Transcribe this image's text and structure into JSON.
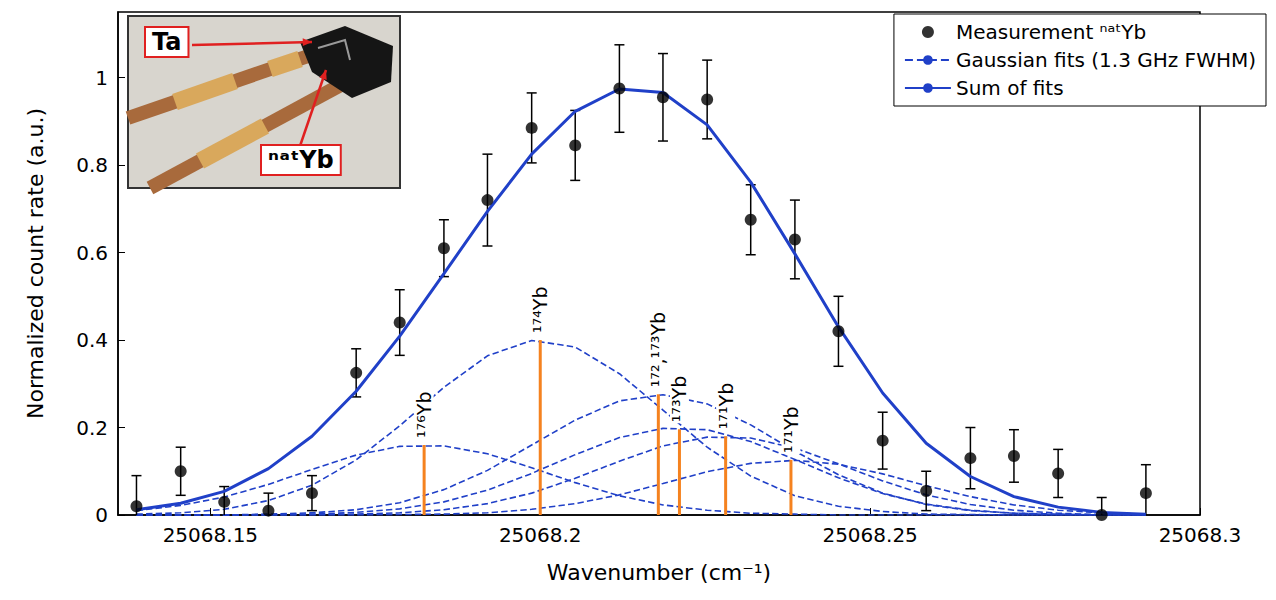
{
  "chart_data": {
    "type": "scatter",
    "x_label": "Wavenumber (cm⁻¹)",
    "y_label": "Normalized count rate (a.u.)",
    "xlim": [
      25068.136,
      25068.3
    ],
    "xticks": [
      25068.15,
      25068.2,
      25068.25,
      25068.3
    ],
    "ylim": [
      0,
      1.15
    ],
    "yticks": [
      0,
      0.2,
      0.4,
      0.6,
      0.8,
      1
    ],
    "grid": false,
    "legend": "upper right",
    "x": [
      25068.1388,
      25068.1455,
      25068.1521,
      25068.1588,
      25068.1654,
      25068.1721,
      25068.1787,
      25068.1854,
      25068.192,
      25068.1987,
      25068.2053,
      25068.212,
      25068.2186,
      25068.2253,
      25068.2319,
      25068.2386,
      25068.2452,
      25068.2519,
      25068.2585,
      25068.2652,
      25068.2718,
      25068.2785,
      25068.2851,
      25068.2918
    ],
    "series": [
      {
        "name": "Measurement ⁿᵃᵗYb",
        "type": "scatter",
        "color": "#000000",
        "marker": "circle",
        "values": [
          0.02,
          0.1,
          0.03,
          0.01,
          0.05,
          0.325,
          0.44,
          0.61,
          0.72,
          0.885,
          0.845,
          0.975,
          0.955,
          0.95,
          0.675,
          0.63,
          0.42,
          0.17,
          0.055,
          0.13,
          0.135,
          0.095,
          0.0,
          0.05
        ],
        "errors": [
          0.07,
          0.055,
          0.035,
          0.04,
          0.04,
          0.055,
          0.075,
          0.065,
          0.105,
          0.08,
          0.08,
          0.1,
          0.1,
          0.09,
          0.08,
          0.09,
          0.08,
          0.065,
          0.045,
          0.07,
          0.06,
          0.055,
          0.04,
          0.065
        ]
      },
      {
        "name": "Gaussian fits (1.3 GHz FWHM)",
        "type": "line",
        "color": "#2040c8",
        "line_style": "dashed",
        "values": [
          [
            0.01,
            0.022,
            0.041,
            0.07,
            0.104,
            0.137,
            0.157,
            0.158,
            0.14,
            0.108,
            0.074,
            0.044,
            0.023,
            0.011,
            0.004,
            0.002,
            0,
            0,
            0,
            0,
            0,
            0,
            0,
            0
          ],
          [
            0.002,
            0.005,
            0.013,
            0.033,
            0.068,
            0.126,
            0.204,
            0.292,
            0.364,
            0.399,
            0.384,
            0.323,
            0.24,
            0.155,
            0.089,
            0.044,
            0.02,
            0.008,
            0.002,
            0.001,
            0,
            0,
            0,
            0
          ],
          [
            0,
            0,
            0,
            0.002,
            0.005,
            0.012,
            0.028,
            0.058,
            0.102,
            0.16,
            0.217,
            0.261,
            0.275,
            0.254,
            0.206,
            0.146,
            0.092,
            0.05,
            0.024,
            0.01,
            0.004,
            0.001,
            0,
            0
          ],
          [
            0,
            0,
            0,
            0.001,
            0.002,
            0.006,
            0.014,
            0.03,
            0.057,
            0.095,
            0.138,
            0.177,
            0.198,
            0.195,
            0.168,
            0.127,
            0.085,
            0.049,
            0.025,
            0.011,
            0.004,
            0.002,
            0,
            0
          ],
          [
            0,
            0,
            0,
            0,
            0.001,
            0.002,
            0.005,
            0.012,
            0.026,
            0.05,
            0.084,
            0.123,
            0.158,
            0.178,
            0.176,
            0.153,
            0.117,
            0.078,
            0.046,
            0.024,
            0.011,
            0.004,
            0.001,
            0
          ],
          [
            0,
            0,
            0,
            0,
            0,
            0,
            0.001,
            0.002,
            0.005,
            0.013,
            0.026,
            0.046,
            0.072,
            0.099,
            0.118,
            0.125,
            0.116,
            0.094,
            0.067,
            0.042,
            0.023,
            0.011,
            0.005,
            0.002
          ]
        ]
      },
      {
        "name": "Sum of fits",
        "type": "line",
        "color": "#2040c8",
        "line_style": "solid",
        "values": [
          0.012,
          0.027,
          0.054,
          0.106,
          0.18,
          0.283,
          0.409,
          0.552,
          0.694,
          0.825,
          0.923,
          0.974,
          0.966,
          0.892,
          0.761,
          0.597,
          0.43,
          0.279,
          0.164,
          0.088,
          0.042,
          0.018,
          0.006,
          0.002
        ]
      }
    ],
    "peaks": {
      "type": "bar",
      "color": "#f5821f",
      "labels": [
        "¹⁷⁶Yb",
        "¹⁷⁴Yb",
        "¹⁷²,¹⁷³Yb",
        "¹⁷³Yb",
        "¹⁷¹Yb",
        "¹⁷¹Yb"
      ],
      "x": [
        25068.1824,
        25068.2,
        25068.2179,
        25068.2211,
        25068.2281,
        25068.238
      ],
      "values": [
        0.16,
        0.4,
        0.276,
        0.196,
        0.18,
        0.126
      ]
    },
    "inset": {
      "labels": [
        "Ta",
        "ⁿᵃᵗYb"
      ]
    }
  }
}
